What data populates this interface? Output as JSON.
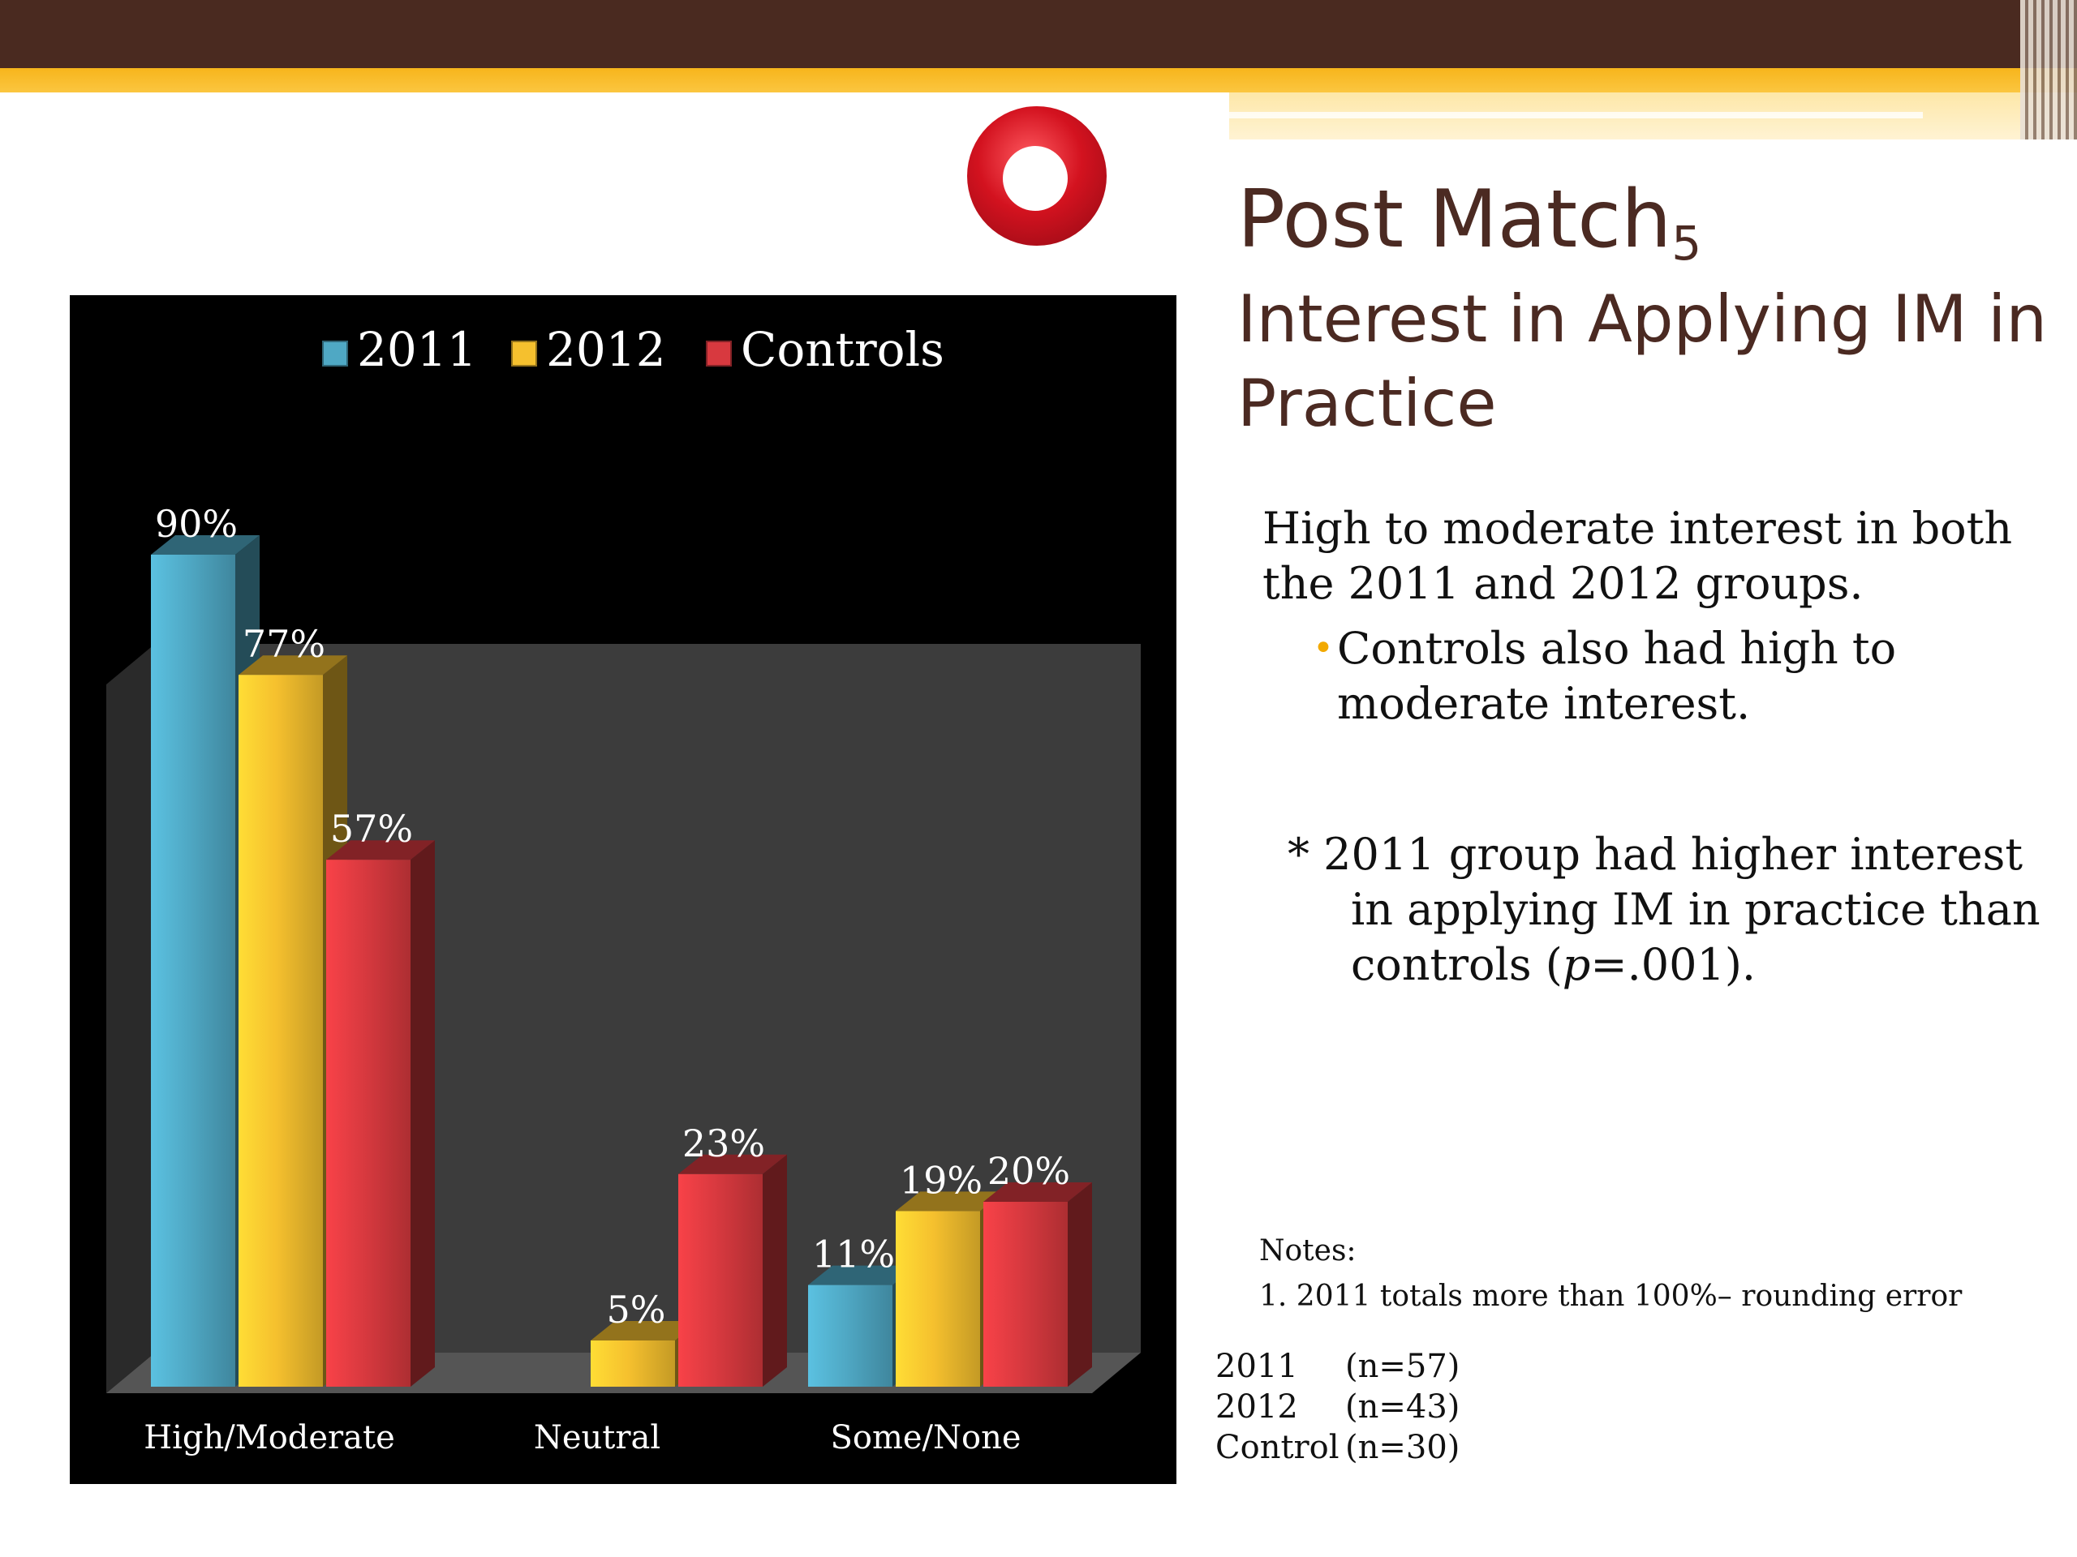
{
  "slide": {
    "title_main": "Post Match",
    "title_sub": "5",
    "subtitle": "Interest in Applying IM in Practice",
    "summary": "High to moderate interest in both the 2011 and 2012 groups.",
    "bullet": "Controls also had high to moderate interest.",
    "footnote_line1": "* 2011 group had higher interest",
    "footnote_line2": "in applying IM in practice than",
    "footnote_line3_pre": "controls (",
    "footnote_line3_italic": "p",
    "footnote_line3_post": "=.001).",
    "notes_label": "Notes:",
    "notes_1": "1. 2011 totals more than 100%– rounding error",
    "sample_sizes": [
      {
        "group": "2011",
        "n": "(n=57)"
      },
      {
        "group": "2012",
        "n": "(n=43)"
      },
      {
        "group": "Control",
        "n": "(n=30)"
      }
    ]
  },
  "colors": {
    "brown": "#4a2a20",
    "gold": "#f7b51c",
    "teal": "#4fa8c4",
    "yellow": "#f5c02e",
    "red": "#d8393f"
  },
  "chart_data": {
    "type": "bar",
    "style": "3d-clustered",
    "categories": [
      "High/Moderate",
      "Neutral",
      "Some/None"
    ],
    "series": [
      {
        "name": "2011",
        "values": [
          90,
          0,
          11
        ],
        "labels": [
          "90%",
          "",
          "11%"
        ]
      },
      {
        "name": "2012",
        "values": [
          77,
          5,
          19
        ],
        "labels": [
          "77%",
          "5%",
          "19%"
        ]
      },
      {
        "name": "Controls",
        "values": [
          57,
          23,
          20
        ],
        "labels": [
          "57%",
          "23%",
          "20%"
        ]
      }
    ],
    "ylim": [
      0,
      100
    ],
    "unit": "%",
    "legend": "top",
    "grid": false
  }
}
